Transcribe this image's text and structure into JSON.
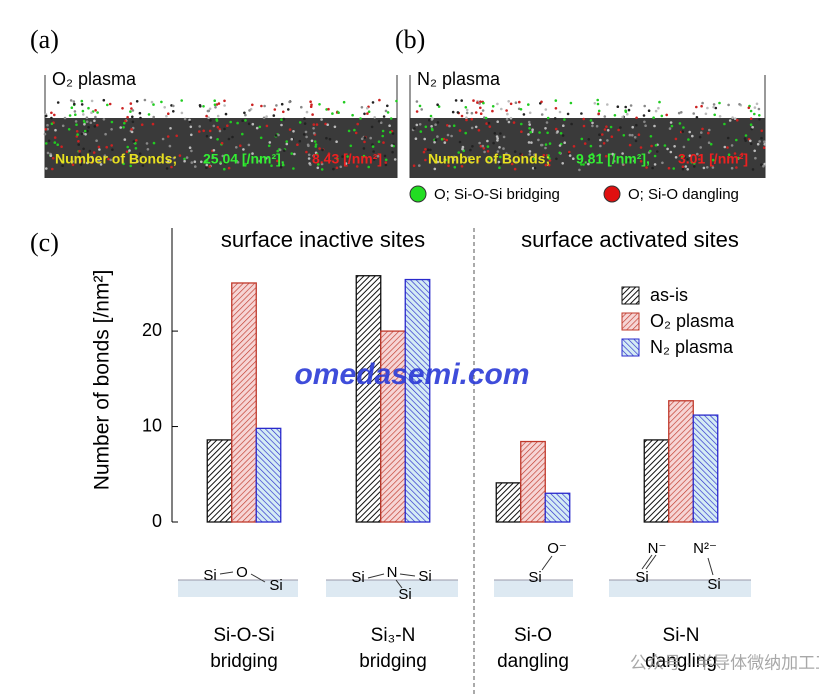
{
  "panels": {
    "a": {
      "label": "(a)",
      "title": "O₂ plasma",
      "bonds_label": "Number of Bonds;",
      "bridging_text": "25.04 [/nm²],",
      "dangling_text": "8.43 [/nm²]"
    },
    "b": {
      "label": "(b)",
      "title": "N₂ plasma",
      "bonds_label": "Number of Bonds;",
      "bridging_text": "9.81 [/nm²],",
      "dangling_text": "3.01 [/nm²]"
    },
    "legend": [
      {
        "name": "O; Si-O-Si bridging",
        "color": "#22dd22"
      },
      {
        "name": "O; Si-O dangling",
        "color": "#e01010"
      }
    ]
  },
  "chart_data": {
    "type": "bar",
    "panel_label": "(c)",
    "ylabel": "Number of bonds [/nm²]",
    "sections": [
      "surface inactive sites",
      "surface activated sites"
    ],
    "categories": [
      [
        "Si-O-Si",
        "bridging"
      ],
      [
        "Si₃-N",
        "bridging"
      ],
      [
        "Si-O",
        "dangling"
      ],
      [
        "Si-N",
        "dangling"
      ]
    ],
    "structures": [
      [
        "Si",
        "O",
        "Si"
      ],
      [
        "Si",
        "N",
        "Si",
        "Si"
      ],
      [
        "O⁻",
        "Si"
      ],
      [
        "N⁻",
        "Si",
        "N²⁻",
        "Si"
      ]
    ],
    "series": [
      {
        "name": "as-is",
        "color": "#111111",
        "fill": "#ffffff",
        "values": [
          8.6,
          25.8,
          4.1,
          8.6
        ]
      },
      {
        "name": "O₂ plasma",
        "color": "#c0392b",
        "fill": "#f6d5d5",
        "values": [
          25.04,
          20.0,
          8.43,
          12.7
        ]
      },
      {
        "name": "N₂ plasma",
        "color": "#2a2acc",
        "fill": "#d4ecf4",
        "values": [
          9.81,
          25.4,
          3.01,
          11.2
        ]
      }
    ],
    "ylim": [
      0,
      30.8
    ],
    "yticks": [
      0,
      10,
      20
    ],
    "legend": "upper right",
    "watermark": "omedasemi.com",
    "footer": "公众号 · 半导体微纳加工工厂"
  }
}
